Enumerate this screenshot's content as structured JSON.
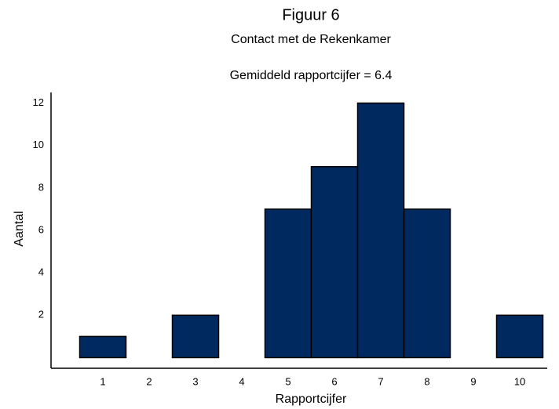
{
  "chart_data": {
    "type": "bar",
    "title": "Figuur 6",
    "subtitle": "Contact met de Rekenkamer",
    "annotation": "Gemiddeld rapportcijfer = 6.4",
    "xlabel": "Rapportcijfer",
    "ylabel": "Aantal",
    "categories": [
      1,
      2,
      3,
      4,
      5,
      6,
      7,
      8,
      9,
      10
    ],
    "values": [
      1,
      0,
      2,
      0,
      7,
      9,
      12,
      7,
      0,
      2
    ],
    "color": "#002a5f",
    "ylim": [
      -0.5,
      12.5
    ],
    "yticks": [
      2,
      4,
      6,
      8,
      10,
      12
    ],
    "grid": false
  }
}
